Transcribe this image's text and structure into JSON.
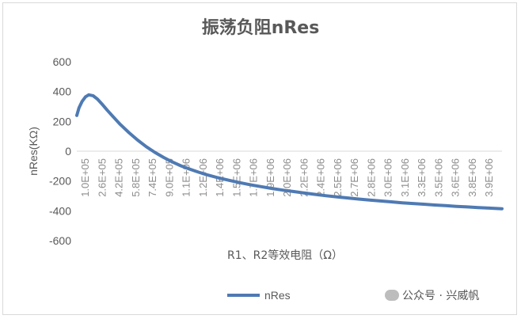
{
  "chart_data": {
    "type": "line",
    "title": "振荡负阻nRes",
    "xlabel": "R1、R2等效电阻（Ω）",
    "ylabel": "nRes(KΩ)",
    "ylim": [
      -600,
      600
    ],
    "yticks": [
      600,
      400,
      200,
      0,
      -200,
      -400,
      -600
    ],
    "xticks": [
      "1.0E+05",
      "2.6E+05",
      "4.2E+05",
      "5.8E+05",
      "7.4E+05",
      "9.0E+05",
      "1.1E+06",
      "1.2E+06",
      "1.4E+06",
      "1.5E+06",
      "1.7E+06",
      "1.9E+06",
      "2.0E+06",
      "2.2E+06",
      "2.4E+06",
      "2.5E+06",
      "2.7E+06",
      "2.8E+06",
      "3.0E+06",
      "3.1E+06",
      "3.3E+06",
      "3.5E+06",
      "3.6E+06",
      "3.8E+06",
      "3.9E+06"
    ],
    "xlim": [
      100000,
      4020000
    ],
    "grid": false,
    "legend": "bottom",
    "series": [
      {
        "name": "nRes",
        "color": "#4f7ab3",
        "x": [
          100000,
          120000,
          150000,
          180000,
          210000,
          250000,
          290000,
          330000,
          380000,
          430000,
          500000,
          580000,
          660000,
          740000,
          820000,
          900000,
          980000,
          1060000,
          1140000,
          1220000,
          1300000,
          1400000,
          1500000,
          1600000,
          1700000,
          1800000,
          1900000,
          2000000,
          2100000,
          2200000,
          2300000,
          2400000,
          2500000,
          2600000,
          2700000,
          2800000,
          2900000,
          3000000,
          3100000,
          3200000,
          3300000,
          3400000,
          3500000,
          3600000,
          3700000,
          3800000,
          3900000,
          4020000
        ],
        "values": [
          240,
          290,
          335,
          365,
          378,
          372,
          350,
          318,
          275,
          235,
          180,
          125,
          75,
          30,
          -8,
          -42,
          -72,
          -98,
          -120,
          -140,
          -158,
          -178,
          -195,
          -211,
          -225,
          -238,
          -250,
          -261,
          -271,
          -281,
          -290,
          -299,
          -307,
          -314,
          -321,
          -328,
          -334,
          -340,
          -346,
          -351,
          -356,
          -361,
          -365,
          -370,
          -374,
          -378,
          -382,
          -386
        ]
      }
    ]
  },
  "watermark": "公众号 · 兴威帆"
}
